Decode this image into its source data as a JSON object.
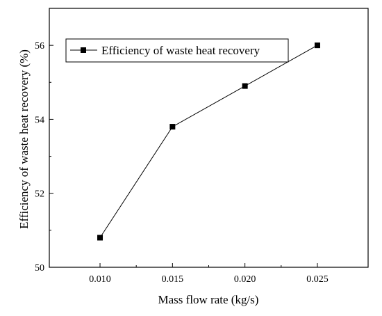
{
  "chart_data": {
    "type": "line",
    "title": "",
    "xlabel": "Mass flow rate (kg/s)",
    "ylabel": "Efficiency of waste heat recovery (%)",
    "xlim": [
      0.0065,
      0.0285
    ],
    "ylim": [
      50,
      57
    ],
    "xticks": [
      "0.010",
      "0.015",
      "0.020",
      "0.025"
    ],
    "yticks": [
      "50",
      "52",
      "54",
      "56"
    ],
    "x": [
      0.01,
      0.015,
      0.02,
      0.025
    ],
    "series": [
      {
        "name": "Efficiency of waste heat recovery",
        "values": [
          50.8,
          53.8,
          54.9,
          56.0
        ]
      }
    ],
    "legend": "top-left",
    "grid": false,
    "marker": "square",
    "line_color": "#000000"
  }
}
